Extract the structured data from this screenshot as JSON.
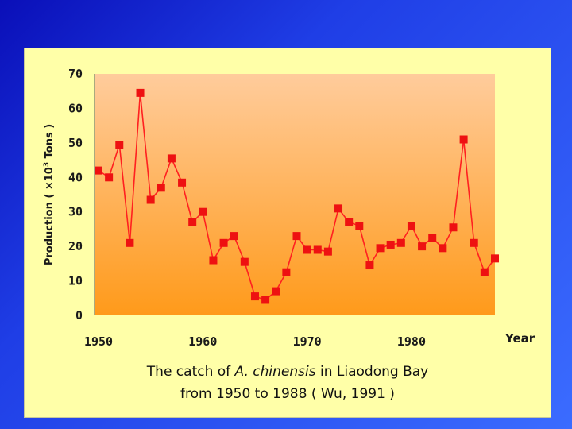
{
  "chart_data": {
    "type": "line",
    "title_line1_prefix": "The catch of ",
    "title_species": "A. chinensis",
    "title_line1_suffix": " in Liaodong Bay",
    "title_line2": "from 1950 to 1988 ( Wu, 1991 )",
    "xlabel": "Year",
    "ylabel_prefix": "Production ( ×10",
    "ylabel_exp": "3",
    "ylabel_suffix": " Tons )",
    "xlim": [
      1950,
      1988
    ],
    "ylim": [
      0,
      70
    ],
    "xticks": [
      1950,
      1960,
      1970,
      1980
    ],
    "yticks": [
      0,
      10,
      20,
      30,
      40,
      50,
      60,
      70
    ],
    "grid": false,
    "colors": {
      "line": "#ff2020",
      "marker": "#ee1111",
      "plot_top": "#ffcc9c",
      "plot_bottom": "#ff9a1a",
      "panel": "#ffffa8"
    },
    "series": [
      {
        "x": [
          1950,
          1951,
          1952,
          1953,
          1954,
          1955,
          1956,
          1957,
          1958,
          1959,
          1960,
          1961,
          1962,
          1963,
          1964,
          1965,
          1966,
          1967,
          1968,
          1969,
          1970,
          1971,
          1972,
          1973,
          1974,
          1975,
          1976,
          1977,
          1978,
          1979,
          1980,
          1981,
          1982,
          1983,
          1984,
          1985,
          1986,
          1987,
          1988
        ],
        "values": [
          42,
          40,
          49.5,
          21,
          64.5,
          33.5,
          37,
          45.5,
          38.5,
          27,
          30,
          16,
          21,
          23,
          15.5,
          5.5,
          4.5,
          7,
          12.5,
          23,
          19,
          19,
          18.5,
          31,
          27,
          26,
          14.5,
          19.5,
          20.5,
          21,
          26,
          20,
          22.5,
          19.5,
          25.5,
          51,
          21,
          12.5,
          16.5
        ]
      }
    ]
  }
}
